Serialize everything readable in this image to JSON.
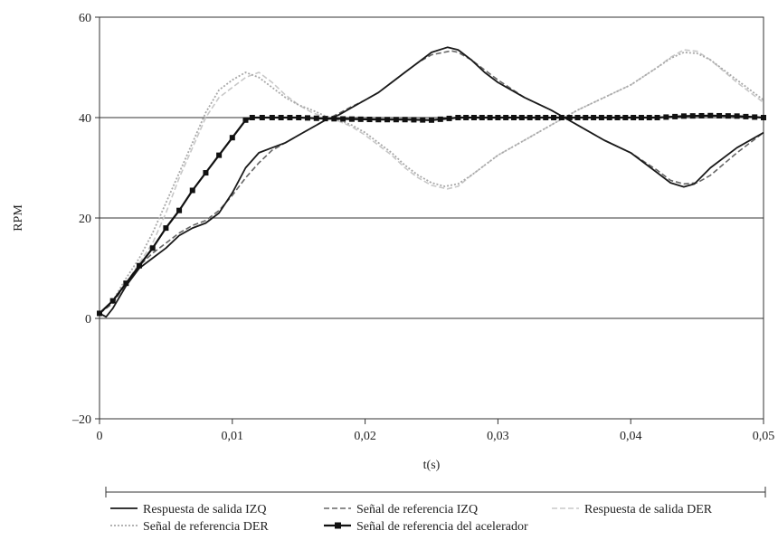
{
  "chart_data": {
    "type": "line",
    "title": "",
    "xlabel": "t(s)",
    "ylabel": "RPM",
    "xlim": [
      0,
      0.05
    ],
    "ylim": [
      -20,
      60
    ],
    "x_ticks": [
      0,
      0.01,
      0.02,
      0.03,
      0.04,
      0.05
    ],
    "x_tick_labels": [
      "0",
      "0,01",
      "0,02",
      "0,03",
      "0,04",
      "0,05"
    ],
    "y_ticks": [
      -20,
      0,
      20,
      40,
      60
    ],
    "y_tick_labels": [
      "–20",
      "0",
      "20",
      "40",
      "60"
    ],
    "grid": "horizontal",
    "legend_position": "bottom",
    "series": [
      {
        "name": "Respuesta de salida IZQ",
        "color": "#1a1a1a",
        "style": "solid",
        "points": [
          [
            0,
            1
          ],
          [
            0.0005,
            0.3
          ],
          [
            0.001,
            2
          ],
          [
            0.002,
            6.5
          ],
          [
            0.003,
            10
          ],
          [
            0.004,
            12
          ],
          [
            0.005,
            14
          ],
          [
            0.006,
            16.5
          ],
          [
            0.007,
            18
          ],
          [
            0.008,
            19
          ],
          [
            0.009,
            21
          ],
          [
            0.01,
            25
          ],
          [
            0.011,
            30
          ],
          [
            0.012,
            33
          ],
          [
            0.013,
            34
          ],
          [
            0.014,
            35
          ],
          [
            0.015,
            36.5
          ],
          [
            0.016,
            38
          ],
          [
            0.017,
            39.5
          ],
          [
            0.018,
            40.5
          ],
          [
            0.019,
            42
          ],
          [
            0.02,
            43.5
          ],
          [
            0.021,
            45
          ],
          [
            0.022,
            47
          ],
          [
            0.023,
            49
          ],
          [
            0.024,
            51
          ],
          [
            0.025,
            53
          ],
          [
            0.0262,
            54
          ],
          [
            0.027,
            53.5
          ],
          [
            0.028,
            51.5
          ],
          [
            0.029,
            49
          ],
          [
            0.03,
            47
          ],
          [
            0.032,
            44
          ],
          [
            0.034,
            41.5
          ],
          [
            0.036,
            38.5
          ],
          [
            0.038,
            35.5
          ],
          [
            0.04,
            33
          ],
          [
            0.042,
            29
          ],
          [
            0.043,
            27
          ],
          [
            0.044,
            26.2
          ],
          [
            0.0448,
            26.8
          ],
          [
            0.046,
            30
          ],
          [
            0.048,
            34
          ],
          [
            0.05,
            37
          ]
        ]
      },
      {
        "name": "Señal de referencia IZQ",
        "color": "#666666",
        "style": "dashed",
        "points": [
          [
            0,
            1
          ],
          [
            0.001,
            3
          ],
          [
            0.002,
            7
          ],
          [
            0.003,
            10.5
          ],
          [
            0.004,
            13
          ],
          [
            0.005,
            15
          ],
          [
            0.006,
            17
          ],
          [
            0.007,
            18.5
          ],
          [
            0.008,
            19.5
          ],
          [
            0.009,
            21.5
          ],
          [
            0.01,
            24.5
          ],
          [
            0.011,
            28
          ],
          [
            0.012,
            31
          ],
          [
            0.013,
            33.5
          ],
          [
            0.014,
            35
          ],
          [
            0.015,
            36.5
          ],
          [
            0.016,
            38
          ],
          [
            0.017,
            39.5
          ],
          [
            0.018,
            40.8
          ],
          [
            0.019,
            42.2
          ],
          [
            0.02,
            43.5
          ],
          [
            0.021,
            45
          ],
          [
            0.022,
            47
          ],
          [
            0.023,
            49
          ],
          [
            0.024,
            51
          ],
          [
            0.025,
            52.5
          ],
          [
            0.0265,
            53.3
          ],
          [
            0.027,
            53
          ],
          [
            0.028,
            51.5
          ],
          [
            0.029,
            49.5
          ],
          [
            0.03,
            47.5
          ],
          [
            0.032,
            44
          ],
          [
            0.034,
            41.5
          ],
          [
            0.036,
            38.5
          ],
          [
            0.038,
            35.5
          ],
          [
            0.04,
            33
          ],
          [
            0.042,
            29.5
          ],
          [
            0.043,
            27.5
          ],
          [
            0.044,
            26.8
          ],
          [
            0.045,
            27
          ],
          [
            0.046,
            28.5
          ],
          [
            0.048,
            33
          ],
          [
            0.05,
            37
          ]
        ]
      },
      {
        "name": "Respuesta de salida DER",
        "color": "#c8c8c8",
        "style": "dashed",
        "points": [
          [
            0,
            1
          ],
          [
            0.001,
            3
          ],
          [
            0.002,
            7
          ],
          [
            0.003,
            11
          ],
          [
            0.004,
            15
          ],
          [
            0.005,
            21
          ],
          [
            0.006,
            28
          ],
          [
            0.007,
            34
          ],
          [
            0.008,
            40
          ],
          [
            0.009,
            44
          ],
          [
            0.01,
            46
          ],
          [
            0.011,
            48
          ],
          [
            0.012,
            49
          ],
          [
            0.013,
            47
          ],
          [
            0.014,
            44.5
          ],
          [
            0.015,
            42.5
          ],
          [
            0.016,
            41
          ],
          [
            0.017,
            40
          ],
          [
            0.018,
            39.3
          ],
          [
            0.019,
            38.2
          ],
          [
            0.02,
            36.5
          ],
          [
            0.021,
            34.5
          ],
          [
            0.022,
            32.5
          ],
          [
            0.023,
            30
          ],
          [
            0.024,
            28
          ],
          [
            0.025,
            26.5
          ],
          [
            0.0262,
            25.8
          ],
          [
            0.027,
            26.3
          ],
          [
            0.028,
            28.5
          ],
          [
            0.029,
            30.5
          ],
          [
            0.03,
            32.5
          ],
          [
            0.032,
            35.5
          ],
          [
            0.034,
            38.5
          ],
          [
            0.036,
            41.5
          ],
          [
            0.038,
            44
          ],
          [
            0.04,
            46.5
          ],
          [
            0.042,
            50
          ],
          [
            0.043,
            52
          ],
          [
            0.044,
            53.5
          ],
          [
            0.045,
            53.2
          ],
          [
            0.046,
            51.5
          ],
          [
            0.048,
            47
          ],
          [
            0.05,
            43
          ]
        ]
      },
      {
        "name": "Señal de referencia DER",
        "color": "#a8a8a8",
        "style": "dotted",
        "points": [
          [
            0,
            1
          ],
          [
            0.001,
            3.5
          ],
          [
            0.002,
            8
          ],
          [
            0.003,
            12
          ],
          [
            0.004,
            17
          ],
          [
            0.005,
            23
          ],
          [
            0.006,
            29
          ],
          [
            0.007,
            35
          ],
          [
            0.008,
            41
          ],
          [
            0.009,
            45.5
          ],
          [
            0.01,
            47.5
          ],
          [
            0.011,
            49
          ],
          [
            0.012,
            48
          ],
          [
            0.013,
            46
          ],
          [
            0.014,
            44
          ],
          [
            0.015,
            42.5
          ],
          [
            0.016,
            41.5
          ],
          [
            0.017,
            40.3
          ],
          [
            0.018,
            39.5
          ],
          [
            0.019,
            38.5
          ],
          [
            0.02,
            37
          ],
          [
            0.021,
            35
          ],
          [
            0.022,
            33
          ],
          [
            0.023,
            30.5
          ],
          [
            0.024,
            28.5
          ],
          [
            0.025,
            27
          ],
          [
            0.026,
            26.3
          ],
          [
            0.027,
            26.8
          ],
          [
            0.028,
            28.5
          ],
          [
            0.029,
            30.5
          ],
          [
            0.03,
            32.5
          ],
          [
            0.032,
            35.5
          ],
          [
            0.034,
            38.5
          ],
          [
            0.036,
            41.5
          ],
          [
            0.038,
            44
          ],
          [
            0.04,
            46.5
          ],
          [
            0.042,
            50
          ],
          [
            0.043,
            51.8
          ],
          [
            0.044,
            53
          ],
          [
            0.045,
            52.8
          ],
          [
            0.046,
            51.5
          ],
          [
            0.048,
            47.5
          ],
          [
            0.05,
            43.5
          ]
        ]
      },
      {
        "name": "Señal de referencia del acelerador",
        "color": "#111111",
        "style": "solid-square-markers",
        "points": [
          [
            0,
            1
          ],
          [
            0.001,
            3.5
          ],
          [
            0.002,
            7
          ],
          [
            0.003,
            10.5
          ],
          [
            0.004,
            14
          ],
          [
            0.005,
            18
          ],
          [
            0.006,
            21.5
          ],
          [
            0.007,
            25.5
          ],
          [
            0.008,
            29
          ],
          [
            0.009,
            32.5
          ],
          [
            0.01,
            36
          ],
          [
            0.011,
            39.5
          ],
          [
            0.0115,
            40
          ],
          [
            0.013,
            40
          ],
          [
            0.015,
            40
          ],
          [
            0.017,
            39.8
          ],
          [
            0.019,
            39.7
          ],
          [
            0.021,
            39.6
          ],
          [
            0.023,
            39.6
          ],
          [
            0.025,
            39.5
          ],
          [
            0.027,
            40
          ],
          [
            0.03,
            40
          ],
          [
            0.033,
            40
          ],
          [
            0.036,
            40
          ],
          [
            0.039,
            40
          ],
          [
            0.042,
            40
          ],
          [
            0.044,
            40.3
          ],
          [
            0.046,
            40.4
          ],
          [
            0.048,
            40.3
          ],
          [
            0.05,
            40
          ]
        ]
      }
    ]
  }
}
